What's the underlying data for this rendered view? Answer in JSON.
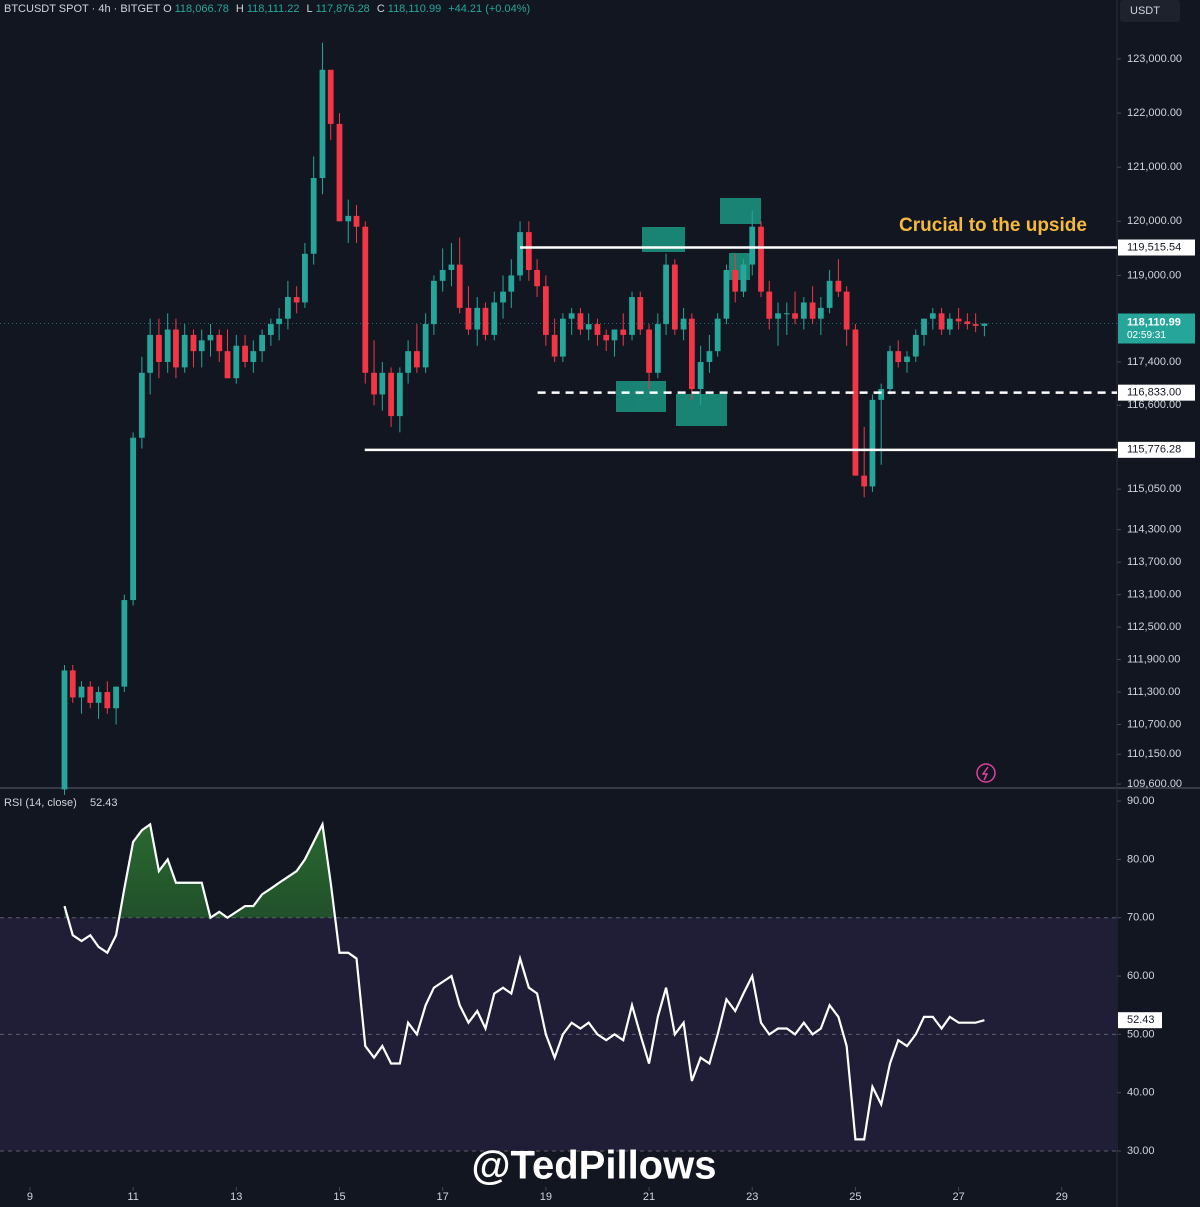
{
  "header": {
    "symbol": "BTCUSDT SPOT · 4h · BITGET",
    "o_label": "O",
    "o": "118,066.78",
    "h_label": "H",
    "h": "118,111.22",
    "l_label": "L",
    "l": "117,876.28",
    "c_label": "C",
    "c": "118,110.99",
    "change": "+44.21 (+0.04%)",
    "currency": "USDT"
  },
  "watermark": "@TedPillows",
  "annotation": "Crucial to the upside",
  "chart_data": [
    {
      "type": "candlestick",
      "x": [
        9.67,
        9.83,
        10,
        10.17,
        10.33,
        10.5,
        10.67,
        10.83,
        11,
        11.17,
        11.33,
        11.5,
        11.67,
        11.83,
        12,
        12.17,
        12.33,
        12.5,
        12.67,
        12.83,
        13,
        13.17,
        13.33,
        13.5,
        13.67,
        13.83,
        14,
        14.17,
        14.33,
        14.5,
        14.67,
        14.83,
        15,
        15.17,
        15.33,
        15.5,
        15.67,
        15.83,
        16,
        16.17,
        16.33,
        16.5,
        16.67,
        16.83,
        17,
        17.17,
        17.33,
        17.5,
        17.67,
        17.83,
        18,
        18.17,
        18.33,
        18.5,
        18.67,
        18.83,
        19,
        19.17,
        19.33,
        19.5,
        19.67,
        19.83,
        20,
        20.17,
        20.33,
        20.5,
        20.67,
        20.83,
        21,
        21.17,
        21.33,
        21.5,
        21.67,
        21.83,
        22,
        22.17,
        22.33,
        22.5,
        22.67,
        22.83,
        23,
        23.17,
        23.33,
        23.5,
        23.67,
        23.83,
        24,
        24.17,
        24.33,
        24.5,
        24.67,
        24.83,
        25,
        25.17,
        25.33,
        25.5,
        25.67,
        25.83,
        26,
        26.17,
        26.33,
        26.5,
        26.67,
        26.83,
        27,
        27.17,
        27.33,
        27.5
      ],
      "ohlc": [
        [
          109500,
          111800,
          109400,
          111700
        ],
        [
          111700,
          111800,
          111100,
          111200
        ],
        [
          111200,
          111500,
          110900,
          111400
        ],
        [
          111400,
          111500,
          111000,
          111100
        ],
        [
          111100,
          111400,
          110800,
          111300
        ],
        [
          111300,
          111500,
          110900,
          111000
        ],
        [
          111000,
          111400,
          110700,
          111400
        ],
        [
          111400,
          113100,
          111300,
          113000
        ],
        [
          113000,
          116100,
          112900,
          116000
        ],
        [
          116000,
          117500,
          115800,
          117200
        ],
        [
          117200,
          118200,
          116800,
          117900
        ],
        [
          117900,
          118200,
          117100,
          117400
        ],
        [
          117400,
          118300,
          117200,
          118000
        ],
        [
          118000,
          118200,
          117100,
          117300
        ],
        [
          117300,
          118100,
          117200,
          117900
        ],
        [
          117900,
          118000,
          117300,
          117600
        ],
        [
          117600,
          118000,
          117300,
          117800
        ],
        [
          117800,
          118100,
          117500,
          117900
        ],
        [
          117900,
          118000,
          117400,
          117600
        ],
        [
          117600,
          118000,
          117100,
          117100
        ],
        [
          117100,
          117900,
          117000,
          117700
        ],
        [
          117700,
          117900,
          117300,
          117400
        ],
        [
          117400,
          117800,
          117200,
          117600
        ],
        [
          117600,
          118000,
          117400,
          117900
        ],
        [
          117900,
          118200,
          117700,
          118100
        ],
        [
          118100,
          118400,
          117800,
          118200
        ],
        [
          118200,
          118900,
          118000,
          118600
        ],
        [
          118600,
          118800,
          118300,
          118500
        ],
        [
          118500,
          119600,
          118400,
          119400
        ],
        [
          119400,
          121200,
          119200,
          120800
        ],
        [
          120800,
          123300,
          120500,
          122800
        ],
        [
          122800,
          122800,
          121500,
          121800
        ],
        [
          121800,
          122000,
          120000,
          120000
        ],
        [
          120000,
          120400,
          119600,
          120100
        ],
        [
          120100,
          120300,
          119600,
          119900
        ],
        [
          119900,
          120000,
          117000,
          117200
        ],
        [
          117200,
          117800,
          116600,
          116800
        ],
        [
          116800,
          117400,
          116500,
          117200
        ],
        [
          117200,
          117300,
          116200,
          116400
        ],
        [
          116400,
          117300,
          116100,
          117200
        ],
        [
          117200,
          117800,
          117000,
          117600
        ],
        [
          117600,
          118100,
          117200,
          117300
        ],
        [
          117300,
          118300,
          117200,
          118100
        ],
        [
          118100,
          119000,
          117900,
          118900
        ],
        [
          118900,
          119500,
          118700,
          119100
        ],
        [
          119100,
          119600,
          118800,
          119200
        ],
        [
          119200,
          119700,
          118300,
          118400
        ],
        [
          118400,
          118800,
          117900,
          118000
        ],
        [
          118000,
          118600,
          117700,
          118400
        ],
        [
          118400,
          118500,
          117800,
          117900
        ],
        [
          117900,
          118700,
          117800,
          118500
        ],
        [
          118500,
          119000,
          118200,
          118700
        ],
        [
          118700,
          119300,
          118400,
          119000
        ],
        [
          119000,
          120000,
          118900,
          119800
        ],
        [
          119800,
          120000,
          118900,
          119100
        ],
        [
          119100,
          119300,
          118600,
          118800
        ],
        [
          118800,
          119000,
          117700,
          117900
        ],
        [
          117900,
          118200,
          117400,
          117500
        ],
        [
          117500,
          118300,
          117400,
          118200
        ],
        [
          118200,
          118400,
          117900,
          118300
        ],
        [
          118300,
          118400,
          117900,
          118000
        ],
        [
          118000,
          118300,
          117800,
          118100
        ],
        [
          118100,
          118200,
          117700,
          117900
        ],
        [
          117900,
          118000,
          117600,
          117800
        ],
        [
          117800,
          118000,
          117500,
          118000
        ],
        [
          118000,
          118300,
          117700,
          117900
        ],
        [
          117900,
          118700,
          117800,
          118600
        ],
        [
          118600,
          118700,
          117900,
          118000
        ],
        [
          118000,
          118100,
          116900,
          117200
        ],
        [
          117200,
          118300,
          117100,
          118100
        ],
        [
          118100,
          119400,
          117900,
          119200
        ],
        [
          119200,
          119300,
          117900,
          118000
        ],
        [
          118000,
          118400,
          117800,
          118200
        ],
        [
          118200,
          118300,
          116700,
          116900
        ],
        [
          116900,
          117700,
          116600,
          117400
        ],
        [
          117400,
          117900,
          117200,
          117600
        ],
        [
          117600,
          118300,
          117500,
          118200
        ],
        [
          118200,
          119200,
          118100,
          119100
        ],
        [
          119100,
          119400,
          118500,
          118700
        ],
        [
          118700,
          119300,
          118600,
          119200
        ],
        [
          119200,
          120200,
          119000,
          119900
        ],
        [
          119900,
          120000,
          118600,
          118700
        ],
        [
          118700,
          118900,
          118000,
          118200
        ],
        [
          118200,
          118500,
          117700,
          118300
        ],
        [
          118300,
          118500,
          117900,
          118300
        ],
        [
          118300,
          118700,
          118100,
          118200
        ],
        [
          118200,
          118600,
          118000,
          118500
        ],
        [
          118500,
          118800,
          118100,
          118200
        ],
        [
          118200,
          118600,
          117900,
          118400
        ],
        [
          118400,
          119100,
          118300,
          118900
        ],
        [
          118900,
          119300,
          118600,
          118700
        ],
        [
          118700,
          118800,
          117700,
          118000
        ],
        [
          118000,
          118100,
          115300,
          115300
        ],
        [
          115300,
          116200,
          114900,
          115100
        ],
        [
          115100,
          116800,
          115000,
          116700
        ],
        [
          116700,
          117000,
          115500,
          116900
        ],
        [
          116900,
          117700,
          116800,
          117600
        ],
        [
          117600,
          117800,
          117300,
          117400
        ],
        [
          117400,
          117600,
          117200,
          117500
        ],
        [
          117500,
          118000,
          117400,
          117900
        ],
        [
          117900,
          118200,
          117700,
          118200
        ],
        [
          118200,
          118400,
          118000,
          118300
        ],
        [
          118300,
          118400,
          117900,
          118000
        ],
        [
          118000,
          118300,
          117900,
          118200
        ],
        [
          118200,
          118400,
          118000,
          118150
        ],
        [
          118150,
          118300,
          118000,
          118100
        ],
        [
          118100,
          118300,
          117950,
          118067
        ],
        [
          118066.78,
          118111.22,
          117876.28,
          118110.99
        ]
      ],
      "up_color": "#26a69a",
      "down_color": "#f23645",
      "xlim": [
        8.42,
        30.07
      ],
      "xticks": [
        9,
        11,
        13,
        15,
        17,
        19,
        21,
        23,
        25,
        27,
        29
      ],
      "ylim": [
        109545,
        124090
      ],
      "yticks": [
        {
          "value": 123000,
          "label": "123,000.00"
        },
        {
          "value": 122000,
          "label": "122,000.00"
        },
        {
          "value": 121000,
          "label": "121,000.00"
        },
        {
          "value": 120000,
          "label": "120,000.00"
        },
        {
          "value": 119000,
          "label": "119,000.00"
        },
        {
          "value": 117400,
          "label": "117,400.00"
        },
        {
          "value": 116600,
          "label": "116,600.00"
        },
        {
          "value": 115050,
          "label": "115,050.00"
        },
        {
          "value": 114300,
          "label": "114,300.00"
        },
        {
          "value": 113700,
          "label": "113,700.00"
        },
        {
          "value": 113100,
          "label": "113,100.00"
        },
        {
          "value": 112500,
          "label": "112,500.00"
        },
        {
          "value": 111900,
          "label": "111,900.00"
        },
        {
          "value": 111300,
          "label": "111,300.00"
        },
        {
          "value": 110700,
          "label": "110,700.00"
        },
        {
          "value": 110150,
          "label": "110,150.00"
        },
        {
          "value": 109600,
          "label": "109,600.00"
        }
      ],
      "levels": [
        {
          "value": 119515.54,
          "label": "119,515.54",
          "start": 18.5,
          "style": "solid"
        },
        {
          "value": 116833,
          "label": "116,833.00",
          "start": 18.84,
          "style": "dashed"
        },
        {
          "value": 115776.28,
          "label": "115,776.28",
          "start": 15.49,
          "style": "solid"
        }
      ],
      "last_price": {
        "value": 118110.99,
        "label": "118,110.99",
        "countdown": "02:59:31"
      }
    },
    {
      "type": "line",
      "title": "RSI (14, close)",
      "color": "#ffffff",
      "values": [
        72,
        67,
        66,
        67,
        65,
        64,
        67,
        75,
        83,
        85,
        86,
        78,
        80,
        76,
        76,
        76,
        76,
        70,
        71,
        70,
        71,
        72,
        72,
        74,
        75,
        76,
        77,
        78,
        80,
        83,
        86,
        76,
        64,
        64,
        63,
        48,
        46,
        48,
        45,
        45,
        52,
        50,
        55,
        58,
        59,
        60,
        55,
        52,
        54,
        51,
        57,
        58,
        57,
        63,
        58,
        57,
        50,
        46,
        50,
        52,
        51,
        52,
        50,
        49,
        50,
        49,
        55,
        50,
        45,
        53,
        58,
        50,
        52,
        42,
        46,
        45,
        50,
        56,
        54,
        57,
        60,
        52,
        50,
        51,
        51,
        50,
        52,
        50,
        51,
        55,
        53,
        48,
        32,
        32,
        41,
        38,
        45,
        49,
        48,
        50,
        53,
        53,
        51,
        53,
        52,
        52,
        52,
        52.43
      ],
      "ylim": [
        27.6,
        91.9
      ],
      "yticks": [
        {
          "value": 90,
          "label": "90.00"
        },
        {
          "value": 80,
          "label": "80.00"
        },
        {
          "value": 70,
          "label": "70.00"
        },
        {
          "value": 60,
          "label": "60.00"
        },
        {
          "value": 50,
          "label": "50.00"
        },
        {
          "value": 40,
          "label": "40.00"
        },
        {
          "value": 30,
          "label": "30.00"
        }
      ],
      "overbought": 70,
      "middle": 50,
      "oversold": 30
    }
  ]
}
